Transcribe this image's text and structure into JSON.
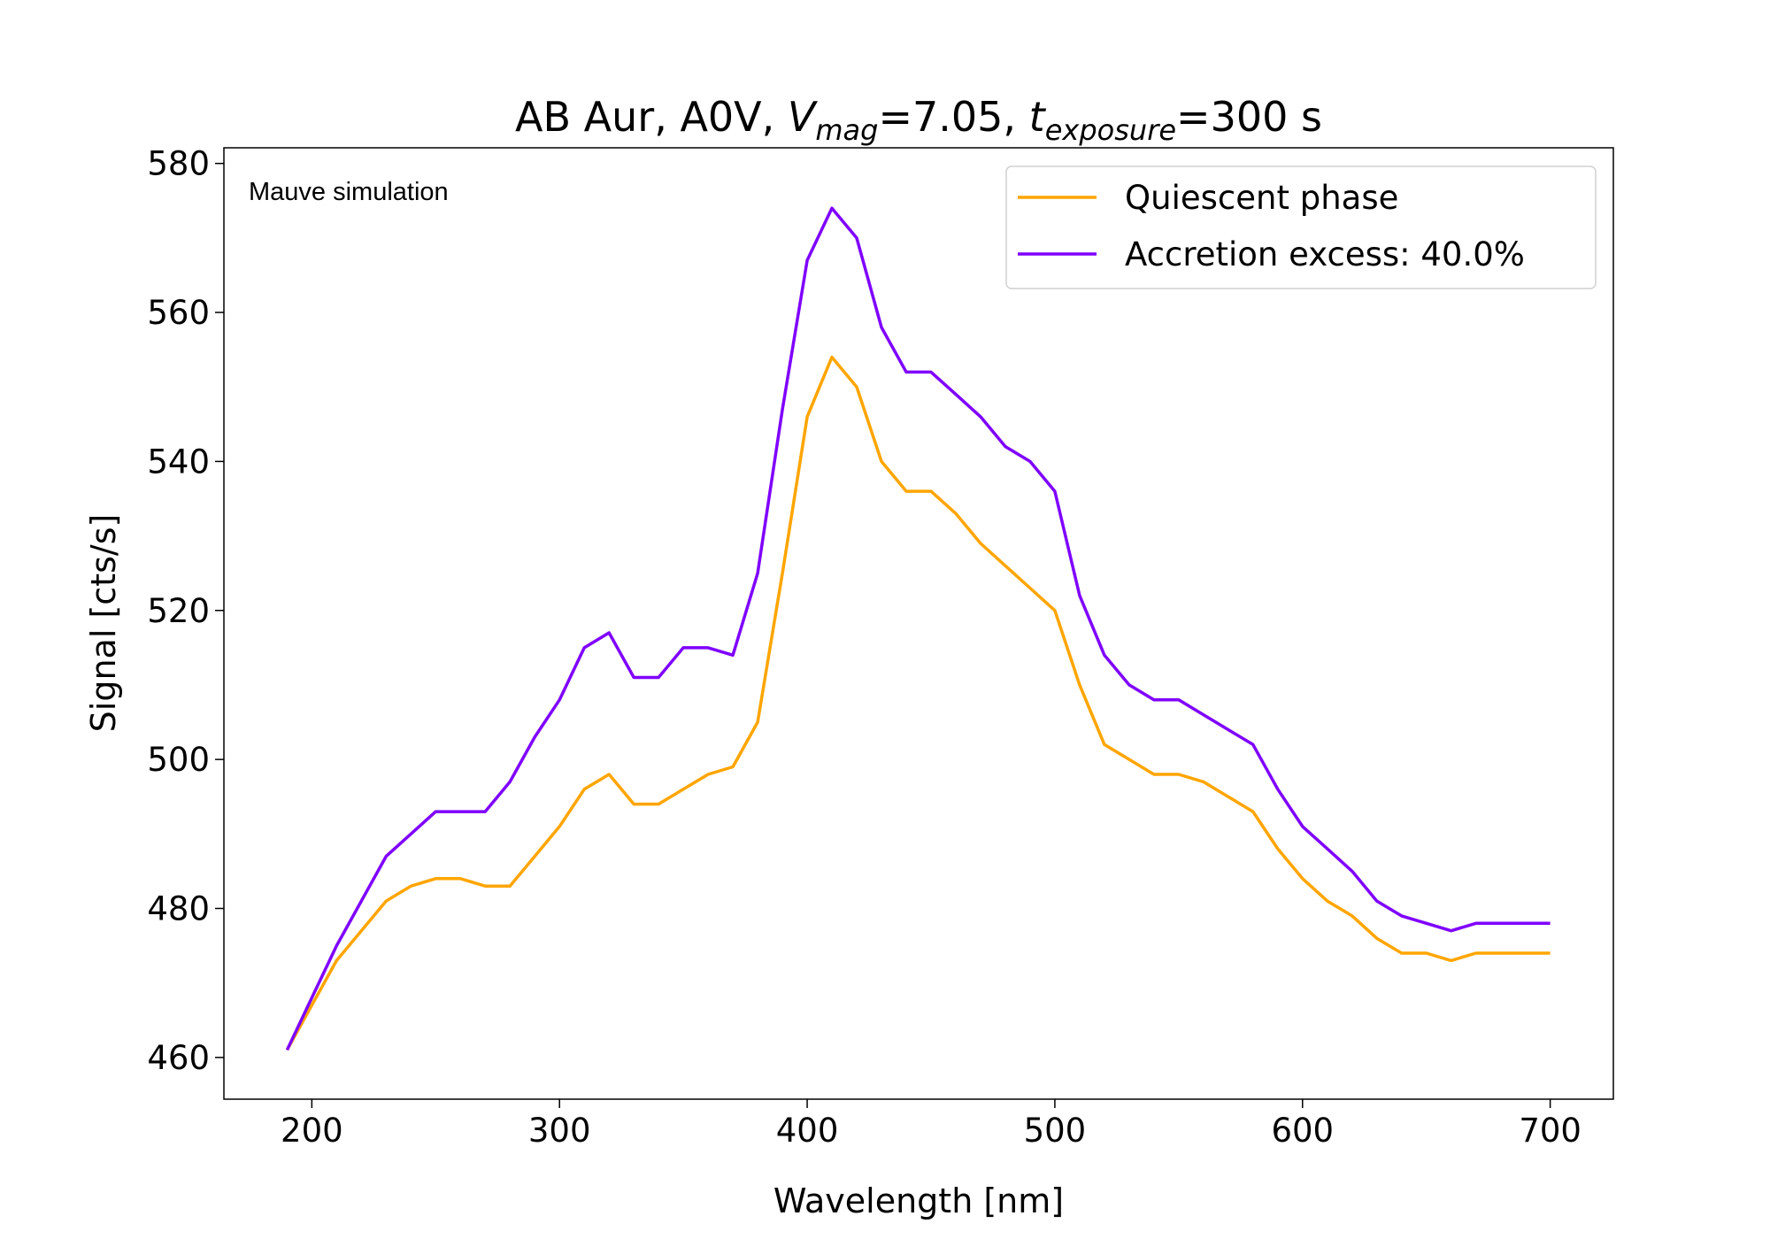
{
  "chart_data": {
    "type": "line",
    "title": [
      "AB Aur, A0V, ",
      "V",
      "mag",
      "=7.05, ",
      "t",
      "exposure",
      "=300 s"
    ],
    "annotation": "Mauve simulation",
    "x_label": "Wavelength [nm]",
    "y_label": "Signal [cts/s]",
    "x": [
      190,
      200,
      210,
      220,
      230,
      240,
      250,
      260,
      270,
      280,
      290,
      300,
      310,
      320,
      330,
      340,
      350,
      360,
      370,
      380,
      390,
      400,
      410,
      420,
      430,
      440,
      450,
      460,
      470,
      480,
      490,
      500,
      510,
      520,
      530,
      540,
      550,
      560,
      570,
      580,
      590,
      600,
      610,
      620,
      630,
      640,
      650,
      660,
      670,
      680,
      690,
      700
    ],
    "series": [
      {
        "name": "Quiescent phase",
        "color": "#ffa500",
        "values": [
          461,
          467,
          473,
          477,
          481,
          483,
          484,
          484,
          483,
          483,
          487,
          491,
          496,
          498,
          494,
          494,
          496,
          498,
          499,
          505,
          525,
          546,
          554,
          550,
          540,
          536,
          536,
          533,
          529,
          526,
          523,
          520,
          510,
          502,
          500,
          498,
          498,
          497,
          495,
          493,
          488,
          484,
          481,
          479,
          476,
          474,
          474,
          473,
          474,
          474,
          474,
          474
        ]
      },
      {
        "name": "Accretion excess: 40.0%",
        "color": "#7f00ff",
        "values": [
          461,
          468,
          475,
          481,
          487,
          490,
          493,
          493,
          493,
          497,
          503,
          508,
          515,
          517,
          511,
          511,
          515,
          515,
          514,
          525,
          547,
          567,
          574,
          570,
          558,
          552,
          552,
          549,
          546,
          542,
          540,
          536,
          522,
          514,
          510,
          508,
          508,
          506,
          504,
          502,
          496,
          491,
          488,
          485,
          481,
          479,
          478,
          477,
          478,
          478,
          478,
          478
        ]
      }
    ],
    "xlim": [
      164.5,
      725.5
    ],
    "ylim": [
      454.4,
      582.1
    ],
    "xticks": [
      200,
      300,
      400,
      500,
      600,
      700
    ],
    "yticks": [
      460,
      480,
      500,
      520,
      540,
      560,
      580
    ],
    "grid": false,
    "legend": "upper right"
  }
}
